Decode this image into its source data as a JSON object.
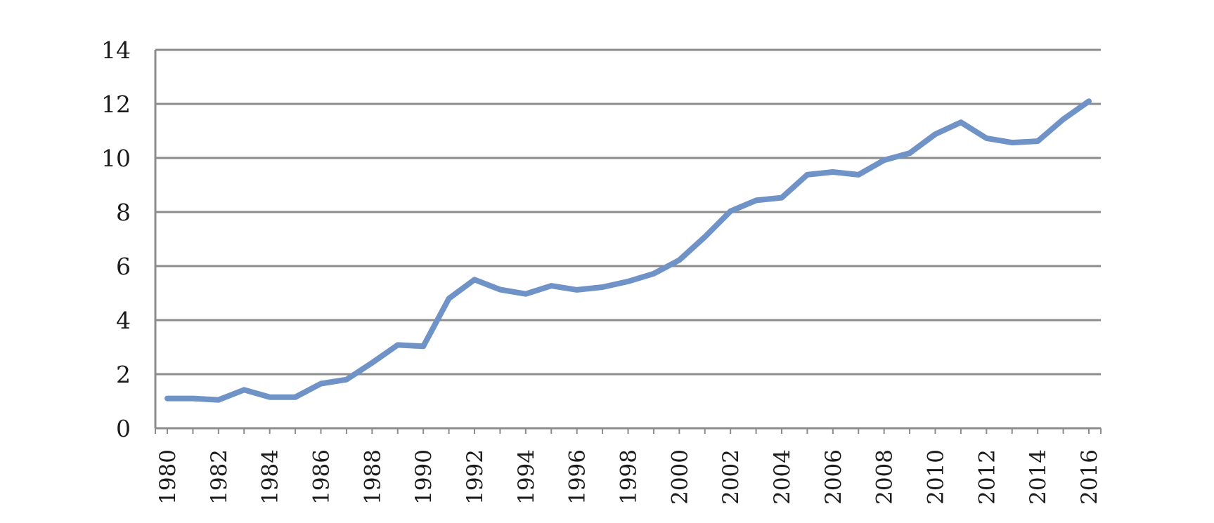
{
  "chart_data": {
    "type": "line",
    "title": "",
    "xlabel": "",
    "ylabel": "",
    "x": [
      1980,
      1981,
      1982,
      1983,
      1984,
      1985,
      1986,
      1987,
      1988,
      1989,
      1990,
      1991,
      1992,
      1993,
      1994,
      1995,
      1996,
      1997,
      1998,
      1999,
      2000,
      2001,
      2002,
      2003,
      2004,
      2005,
      2006,
      2007,
      2008,
      2009,
      2010,
      2011,
      2012,
      2013,
      2014,
      2015,
      2016
    ],
    "series": [
      {
        "values": [
          1.1,
          1.1,
          1.05,
          1.42,
          1.15,
          1.15,
          1.65,
          1.8,
          2.42,
          3.08,
          3.03,
          4.8,
          5.5,
          5.13,
          4.97,
          5.27,
          5.12,
          5.22,
          5.43,
          5.72,
          6.22,
          7.08,
          8.03,
          8.43,
          8.53,
          9.38,
          9.48,
          9.38,
          9.92,
          10.18,
          10.88,
          11.32,
          10.73,
          10.57,
          10.62,
          11.43,
          12.1
        ],
        "color": "#6f92c7"
      }
    ],
    "ylim": [
      0,
      14
    ],
    "yticks": [
      "0",
      "2",
      "4",
      "6",
      "8",
      "10",
      "12",
      "14"
    ],
    "xtick_labels": [
      "1980",
      "1982",
      "1984",
      "1986",
      "1988",
      "1990",
      "1992",
      "1994",
      "1996",
      "1998",
      "2000",
      "2002",
      "2004",
      "2006",
      "2008",
      "2010",
      "2012",
      "2014",
      "2016"
    ],
    "grid": true,
    "legend": "none"
  }
}
